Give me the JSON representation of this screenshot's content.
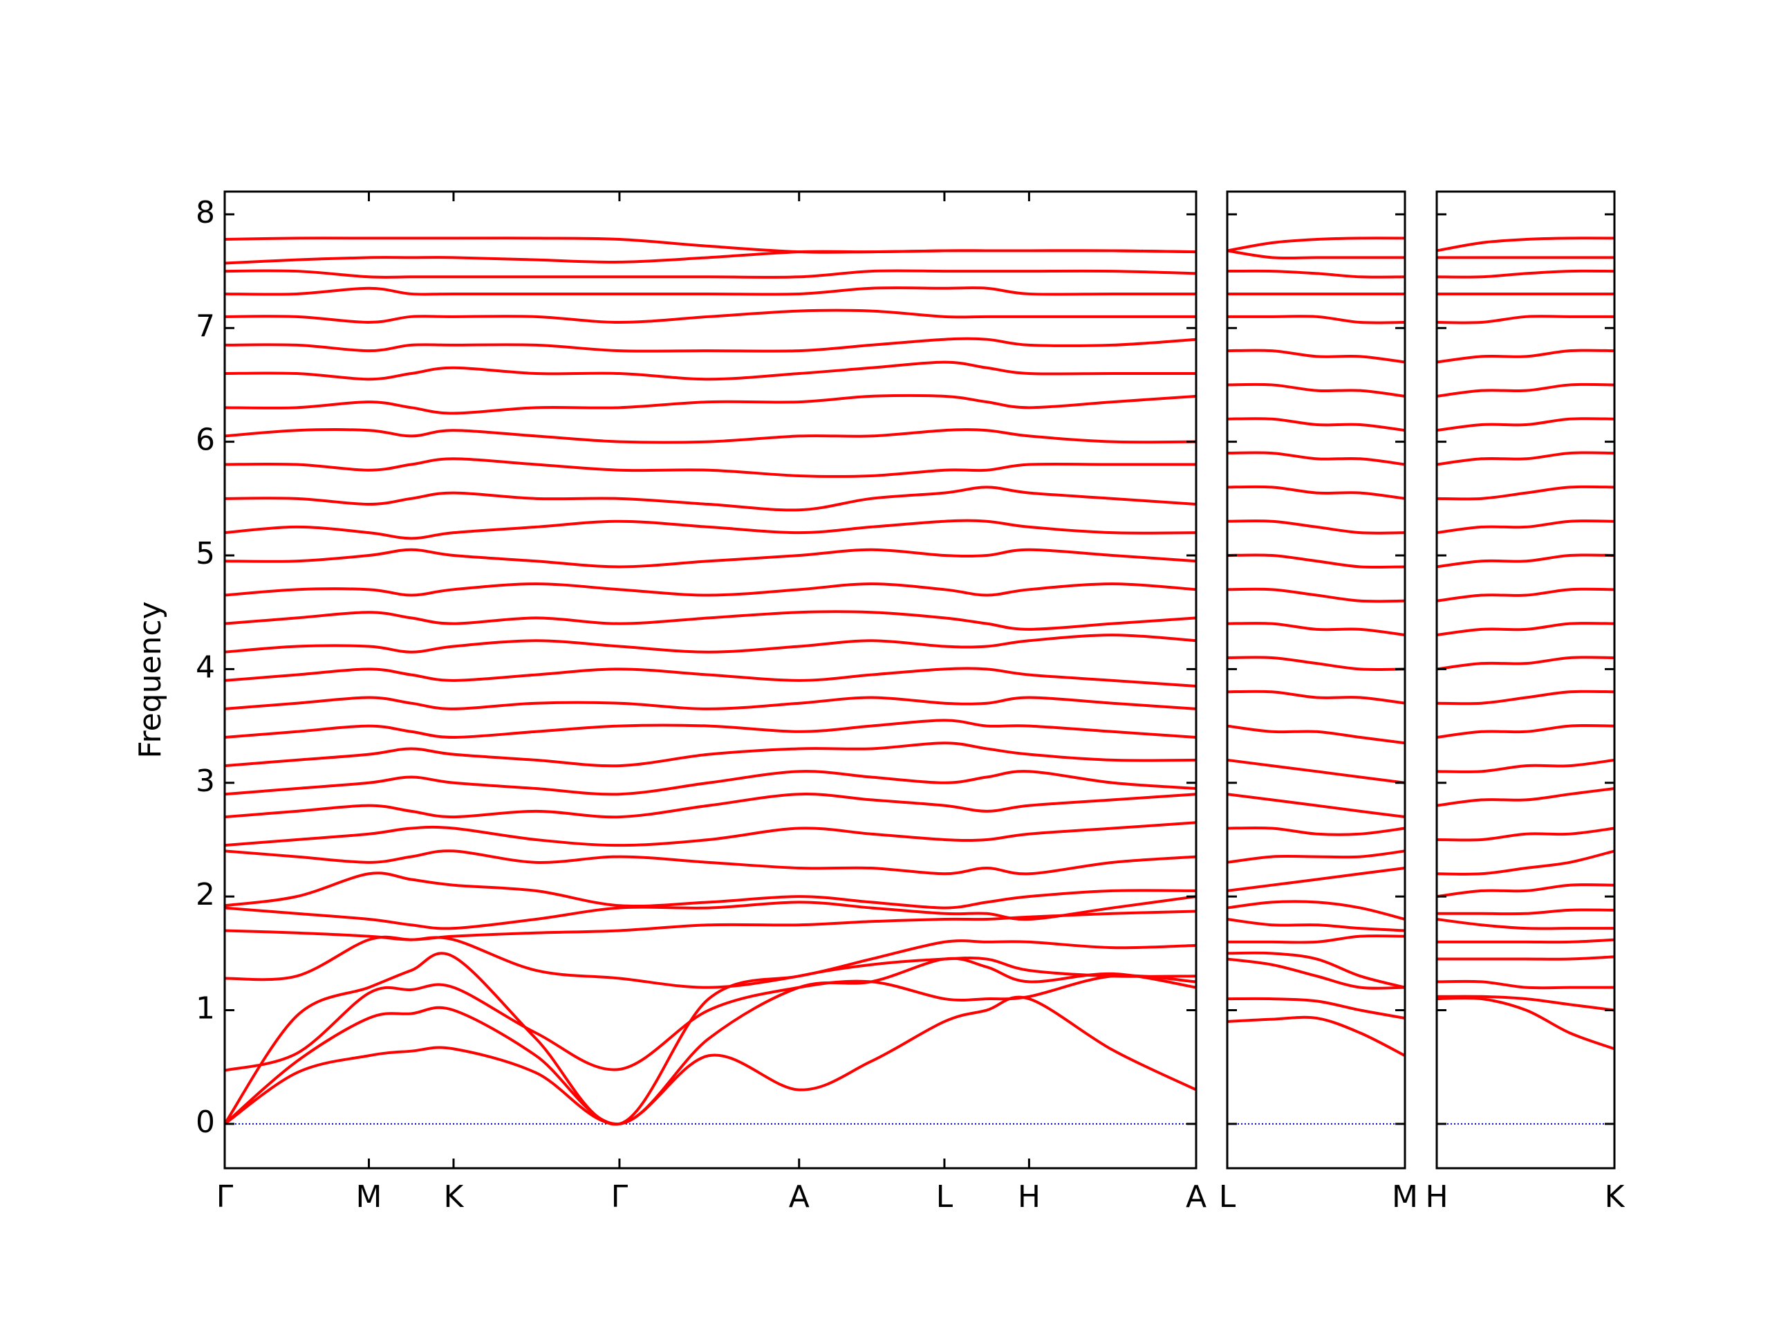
{
  "chart_data": [
    {
      "type": "line",
      "ylabel": "Frequency",
      "color": "#ff0000",
      "show_ytick_labels": true,
      "zero_line": 0,
      "zero_line_color": "#0000cc",
      "xlim": [
        0,
        8.49
      ],
      "ylim": [
        -0.39,
        8.2
      ],
      "yticks": [
        0,
        1,
        2,
        3,
        4,
        5,
        6,
        7,
        8
      ],
      "xticks": [
        {
          "value": 0,
          "label": "Γ"
        },
        {
          "value": 1.26,
          "label": "M"
        },
        {
          "value": 2.0,
          "label": "K"
        },
        {
          "value": 3.45,
          "label": "Γ"
        },
        {
          "value": 5.02,
          "label": "A"
        },
        {
          "value": 6.29,
          "label": "L"
        },
        {
          "value": 7.03,
          "label": "H"
        },
        {
          "value": 8.49,
          "label": "A"
        }
      ],
      "x": [
        0,
        0.63,
        1.26,
        1.63,
        2.0,
        2.72,
        3.45,
        4.23,
        5.02,
        5.65,
        6.29,
        6.66,
        7.03,
        7.76,
        8.49
      ],
      "bands": [
        [
          0,
          0.45,
          0.6,
          0.64,
          0.66,
          0.45,
          0,
          0.6,
          0.3,
          0.55,
          0.9,
          1.0,
          1.1,
          0.65,
          0.3
        ],
        [
          0,
          0.55,
          0.93,
          0.97,
          1.0,
          0.6,
          0,
          0.75,
          1.2,
          1.25,
          1.45,
          1.38,
          1.25,
          1.32,
          1.2
        ],
        [
          0.47,
          0.62,
          1.15,
          1.18,
          1.2,
          0.8,
          0.48,
          1.0,
          1.2,
          1.25,
          1.1,
          1.1,
          1.12,
          1.3,
          1.25
        ],
        [
          0,
          0.95,
          1.2,
          1.35,
          1.47,
          0.75,
          0,
          1.1,
          1.3,
          1.4,
          1.45,
          1.45,
          1.35,
          1.3,
          1.3
        ],
        [
          1.28,
          1.3,
          1.62,
          1.62,
          1.62,
          1.35,
          1.28,
          1.2,
          1.3,
          1.45,
          1.6,
          1.6,
          1.6,
          1.55,
          1.57
        ],
        [
          1.7,
          1.68,
          1.65,
          1.62,
          1.65,
          1.68,
          1.7,
          1.75,
          1.75,
          1.78,
          1.8,
          1.8,
          1.82,
          1.85,
          1.87
        ],
        [
          1.9,
          1.85,
          1.8,
          1.75,
          1.72,
          1.8,
          1.9,
          1.9,
          1.95,
          1.9,
          1.85,
          1.85,
          1.8,
          1.9,
          2.0
        ],
        [
          1.92,
          2.0,
          2.2,
          2.15,
          2.1,
          2.05,
          1.92,
          1.95,
          2.0,
          1.95,
          1.9,
          1.95,
          2.0,
          2.05,
          2.05
        ],
        [
          2.4,
          2.35,
          2.3,
          2.35,
          2.4,
          2.3,
          2.35,
          2.3,
          2.25,
          2.25,
          2.2,
          2.25,
          2.2,
          2.3,
          2.35
        ],
        [
          2.45,
          2.5,
          2.55,
          2.6,
          2.6,
          2.5,
          2.45,
          2.5,
          2.6,
          2.55,
          2.5,
          2.5,
          2.55,
          2.6,
          2.65
        ],
        [
          2.7,
          2.75,
          2.8,
          2.75,
          2.7,
          2.75,
          2.7,
          2.8,
          2.9,
          2.85,
          2.8,
          2.75,
          2.8,
          2.85,
          2.9
        ],
        [
          2.9,
          2.95,
          3.0,
          3.05,
          3.0,
          2.95,
          2.9,
          3.0,
          3.1,
          3.05,
          3.0,
          3.05,
          3.1,
          3.0,
          2.95
        ],
        [
          3.15,
          3.2,
          3.25,
          3.3,
          3.25,
          3.2,
          3.15,
          3.25,
          3.3,
          3.3,
          3.35,
          3.3,
          3.25,
          3.2,
          3.2
        ],
        [
          3.4,
          3.45,
          3.5,
          3.45,
          3.4,
          3.45,
          3.5,
          3.5,
          3.45,
          3.5,
          3.55,
          3.5,
          3.5,
          3.45,
          3.4
        ],
        [
          3.65,
          3.7,
          3.75,
          3.7,
          3.65,
          3.7,
          3.7,
          3.65,
          3.7,
          3.75,
          3.7,
          3.7,
          3.75,
          3.7,
          3.65
        ],
        [
          3.9,
          3.95,
          4.0,
          3.95,
          3.9,
          3.95,
          4.0,
          3.95,
          3.9,
          3.95,
          4.0,
          4.0,
          3.95,
          3.9,
          3.85
        ],
        [
          4.15,
          4.2,
          4.2,
          4.15,
          4.2,
          4.25,
          4.2,
          4.15,
          4.2,
          4.25,
          4.2,
          4.2,
          4.25,
          4.3,
          4.25
        ],
        [
          4.4,
          4.45,
          4.5,
          4.45,
          4.4,
          4.45,
          4.4,
          4.45,
          4.5,
          4.5,
          4.45,
          4.4,
          4.35,
          4.4,
          4.45
        ],
        [
          4.65,
          4.7,
          4.7,
          4.65,
          4.7,
          4.75,
          4.7,
          4.65,
          4.7,
          4.75,
          4.7,
          4.65,
          4.7,
          4.75,
          4.7
        ],
        [
          4.95,
          4.95,
          5.0,
          5.05,
          5.0,
          4.95,
          4.9,
          4.95,
          5.0,
          5.05,
          5.0,
          5.0,
          5.05,
          5.0,
          4.95
        ],
        [
          5.2,
          5.25,
          5.2,
          5.15,
          5.2,
          5.25,
          5.3,
          5.25,
          5.2,
          5.25,
          5.3,
          5.3,
          5.25,
          5.2,
          5.2
        ],
        [
          5.5,
          5.5,
          5.45,
          5.5,
          5.55,
          5.5,
          5.5,
          5.45,
          5.4,
          5.5,
          5.55,
          5.6,
          5.55,
          5.5,
          5.45
        ],
        [
          5.8,
          5.8,
          5.75,
          5.8,
          5.85,
          5.8,
          5.75,
          5.75,
          5.7,
          5.7,
          5.75,
          5.75,
          5.8,
          5.8,
          5.8
        ],
        [
          6.05,
          6.1,
          6.1,
          6.05,
          6.1,
          6.05,
          6.0,
          6.0,
          6.05,
          6.05,
          6.1,
          6.1,
          6.05,
          6.0,
          6.0
        ],
        [
          6.3,
          6.3,
          6.35,
          6.3,
          6.25,
          6.3,
          6.3,
          6.35,
          6.35,
          6.4,
          6.4,
          6.35,
          6.3,
          6.35,
          6.4
        ],
        [
          6.6,
          6.6,
          6.55,
          6.6,
          6.65,
          6.6,
          6.6,
          6.55,
          6.6,
          6.65,
          6.7,
          6.65,
          6.6,
          6.6,
          6.6
        ],
        [
          6.85,
          6.85,
          6.8,
          6.85,
          6.85,
          6.85,
          6.8,
          6.8,
          6.8,
          6.85,
          6.9,
          6.9,
          6.85,
          6.85,
          6.9
        ],
        [
          7.1,
          7.1,
          7.05,
          7.1,
          7.1,
          7.1,
          7.05,
          7.1,
          7.15,
          7.15,
          7.1,
          7.1,
          7.1,
          7.1,
          7.1
        ],
        [
          7.3,
          7.3,
          7.35,
          7.3,
          7.3,
          7.3,
          7.3,
          7.3,
          7.3,
          7.35,
          7.35,
          7.35,
          7.3,
          7.3,
          7.3
        ],
        [
          7.5,
          7.5,
          7.45,
          7.45,
          7.45,
          7.45,
          7.45,
          7.45,
          7.45,
          7.5,
          7.5,
          7.5,
          7.5,
          7.5,
          7.48
        ],
        [
          7.57,
          7.6,
          7.62,
          7.62,
          7.62,
          7.6,
          7.58,
          7.62,
          7.67,
          7.67,
          7.68,
          7.68,
          7.68,
          7.68,
          7.67
        ],
        [
          7.78,
          7.79,
          7.79,
          7.79,
          7.79,
          7.79,
          7.78,
          7.72,
          7.67,
          7.67,
          7.68,
          7.68,
          7.68,
          7.68,
          7.67
        ]
      ]
    },
    {
      "type": "line",
      "color": "#ff0000",
      "show_ytick_labels": false,
      "zero_line": 0,
      "zero_line_color": "#0000cc",
      "xlim": [
        0,
        1.55
      ],
      "ylim": [
        -0.39,
        8.2
      ],
      "yticks": [
        0,
        1,
        2,
        3,
        4,
        5,
        6,
        7,
        8
      ],
      "xticks": [
        {
          "value": 0,
          "label": "L"
        },
        {
          "value": 1.55,
          "label": "M"
        }
      ],
      "x": [
        0,
        0.39,
        0.78,
        1.16,
        1.55
      ],
      "bands": [
        [
          0.9,
          0.92,
          0.93,
          0.8,
          0.6
        ],
        [
          1.1,
          1.1,
          1.08,
          1.0,
          0.93
        ],
        [
          1.45,
          1.4,
          1.3,
          1.2,
          1.2
        ],
        [
          1.5,
          1.5,
          1.45,
          1.3,
          1.2
        ],
        [
          1.6,
          1.6,
          1.6,
          1.65,
          1.65
        ],
        [
          1.8,
          1.75,
          1.75,
          1.72,
          1.7
        ],
        [
          1.9,
          1.95,
          1.95,
          1.9,
          1.8
        ],
        [
          2.05,
          2.1,
          2.15,
          2.2,
          2.25
        ],
        [
          2.3,
          2.35,
          2.35,
          2.35,
          2.4
        ],
        [
          2.6,
          2.6,
          2.55,
          2.55,
          2.6
        ],
        [
          2.9,
          2.85,
          2.8,
          2.75,
          2.7
        ],
        [
          3.2,
          3.15,
          3.1,
          3.05,
          3.0
        ],
        [
          3.5,
          3.45,
          3.45,
          3.4,
          3.35
        ],
        [
          3.8,
          3.8,
          3.75,
          3.75,
          3.7
        ],
        [
          4.1,
          4.1,
          4.05,
          4.0,
          4.0
        ],
        [
          4.4,
          4.4,
          4.35,
          4.35,
          4.3
        ],
        [
          4.7,
          4.7,
          4.65,
          4.6,
          4.6
        ],
        [
          5.0,
          5.0,
          4.95,
          4.9,
          4.9
        ],
        [
          5.3,
          5.3,
          5.25,
          5.2,
          5.2
        ],
        [
          5.6,
          5.6,
          5.55,
          5.55,
          5.5
        ],
        [
          5.9,
          5.9,
          5.85,
          5.85,
          5.8
        ],
        [
          6.2,
          6.2,
          6.15,
          6.15,
          6.1
        ],
        [
          6.5,
          6.5,
          6.45,
          6.45,
          6.4
        ],
        [
          6.8,
          6.8,
          6.75,
          6.75,
          6.7
        ],
        [
          7.1,
          7.1,
          7.1,
          7.05,
          7.05
        ],
        [
          7.3,
          7.3,
          7.3,
          7.3,
          7.3
        ],
        [
          7.5,
          7.5,
          7.48,
          7.45,
          7.45
        ],
        [
          7.68,
          7.62,
          7.62,
          7.62,
          7.62
        ],
        [
          7.68,
          7.75,
          7.78,
          7.79,
          7.79
        ]
      ]
    },
    {
      "type": "line",
      "color": "#ff0000",
      "show_ytick_labels": false,
      "zero_line": 0,
      "zero_line_color": "#0000cc",
      "xlim": [
        0,
        1.55
      ],
      "ylim": [
        -0.39,
        8.2
      ],
      "yticks": [
        0,
        1,
        2,
        3,
        4,
        5,
        6,
        7,
        8
      ],
      "xticks": [
        {
          "value": 0,
          "label": "H"
        },
        {
          "value": 1.55,
          "label": "K"
        }
      ],
      "x": [
        0,
        0.39,
        0.78,
        1.16,
        1.55
      ],
      "bands": [
        [
          1.1,
          1.1,
          1.0,
          0.8,
          0.66
        ],
        [
          1.12,
          1.12,
          1.1,
          1.05,
          1.0
        ],
        [
          1.25,
          1.25,
          1.2,
          1.2,
          1.2
        ],
        [
          1.45,
          1.45,
          1.45,
          1.45,
          1.47
        ],
        [
          1.6,
          1.6,
          1.6,
          1.6,
          1.62
        ],
        [
          1.8,
          1.75,
          1.72,
          1.72,
          1.72
        ],
        [
          1.85,
          1.85,
          1.85,
          1.88,
          1.88
        ],
        [
          2.0,
          2.05,
          2.05,
          2.1,
          2.1
        ],
        [
          2.2,
          2.2,
          2.25,
          2.3,
          2.4
        ],
        [
          2.5,
          2.5,
          2.55,
          2.55,
          2.6
        ],
        [
          2.8,
          2.85,
          2.85,
          2.9,
          2.95
        ],
        [
          3.1,
          3.1,
          3.15,
          3.15,
          3.2
        ],
        [
          3.4,
          3.45,
          3.45,
          3.5,
          3.5
        ],
        [
          3.7,
          3.7,
          3.75,
          3.8,
          3.8
        ],
        [
          4.0,
          4.05,
          4.05,
          4.1,
          4.1
        ],
        [
          4.3,
          4.35,
          4.35,
          4.4,
          4.4
        ],
        [
          4.6,
          4.65,
          4.65,
          4.7,
          4.7
        ],
        [
          4.9,
          4.95,
          4.95,
          5.0,
          5.0
        ],
        [
          5.2,
          5.25,
          5.25,
          5.3,
          5.3
        ],
        [
          5.5,
          5.5,
          5.55,
          5.6,
          5.6
        ],
        [
          5.8,
          5.85,
          5.85,
          5.9,
          5.9
        ],
        [
          6.1,
          6.15,
          6.15,
          6.2,
          6.2
        ],
        [
          6.4,
          6.45,
          6.45,
          6.5,
          6.5
        ],
        [
          6.7,
          6.75,
          6.75,
          6.8,
          6.8
        ],
        [
          7.05,
          7.05,
          7.1,
          7.1,
          7.1
        ],
        [
          7.3,
          7.3,
          7.3,
          7.3,
          7.3
        ],
        [
          7.45,
          7.45,
          7.48,
          7.5,
          7.5
        ],
        [
          7.62,
          7.62,
          7.62,
          7.62,
          7.62
        ],
        [
          7.68,
          7.75,
          7.78,
          7.79,
          7.79
        ]
      ]
    }
  ]
}
